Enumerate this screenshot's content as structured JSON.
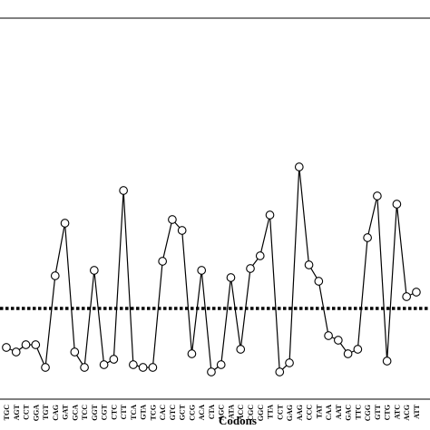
{
  "chart_data": {
    "type": "line",
    "x_label": "Codons",
    "categories": [
      "TGC",
      "AGT",
      "CCT",
      "GGA",
      "TGT",
      "CAG",
      "GAT",
      "GCA",
      "TCC",
      "GGT",
      "CGT",
      "CTC",
      "CTT",
      "TCA",
      "GTA",
      "TCG",
      "CAC",
      "GTC",
      "GCT",
      "CCG",
      "ACA",
      "CTA",
      "AGC",
      "ATA",
      "ACC",
      "CGC",
      "GGC",
      "TTA",
      "CCT",
      "GAG",
      "AAG",
      "CCC",
      "TAT",
      "CAA",
      "AAT",
      "GAC",
      "TTC",
      "CGG",
      "GTT",
      "CTG",
      "ATC",
      "ACG",
      "ATT"
    ],
    "series": [
      {
        "color": "#000000",
        "values": [
          0.57,
          0.52,
          0.6,
          0.6,
          0.35,
          1.36,
          1.94,
          0.52,
          0.35,
          1.42,
          0.38,
          0.44,
          2.3,
          0.38,
          0.35,
          0.35,
          1.52,
          1.98,
          1.86,
          0.5,
          1.42,
          0.3,
          0.38,
          1.34,
          0.55,
          1.44,
          1.58,
          2.03,
          0.3,
          0.4,
          2.56,
          1.48,
          1.3,
          0.7,
          0.65,
          0.5,
          0.55,
          1.78,
          2.24,
          0.42,
          2.15,
          1.13,
          1.18
        ]
      }
    ],
    "ylim": [
      0,
      4.2
    ],
    "reference_line": 1
  }
}
